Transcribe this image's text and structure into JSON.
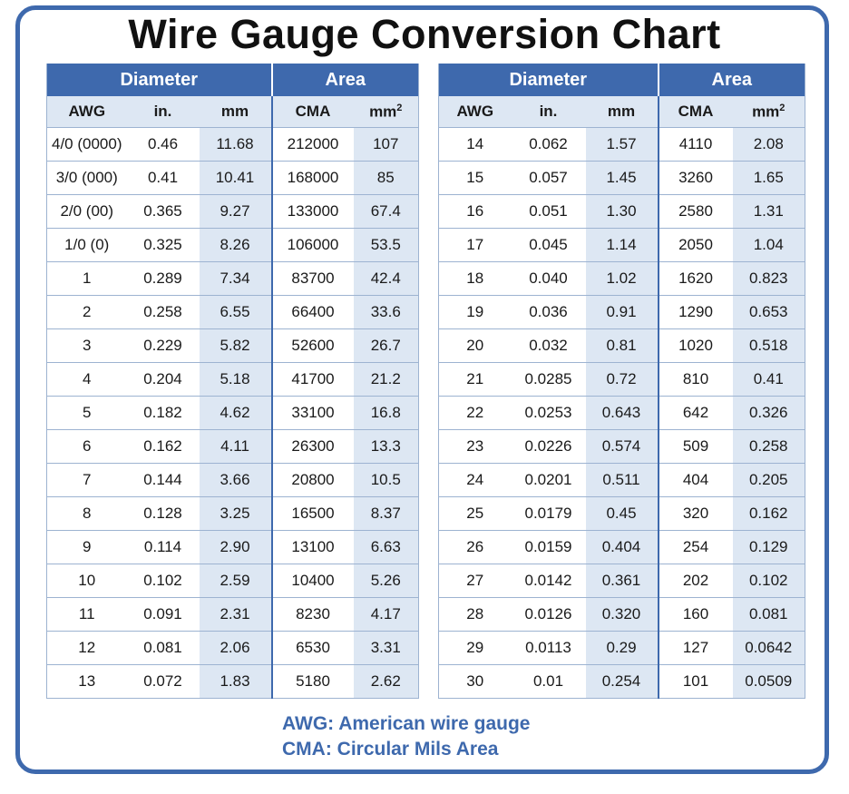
{
  "title": "Wire Gauge Conversion Chart",
  "colors": {
    "header": "#3e69ad",
    "shaded_column": "#dde7f3",
    "legend_text": "#3e69ad"
  },
  "groups": {
    "diameter": "Diameter",
    "area": "Area"
  },
  "columns": {
    "awg": "AWG",
    "in": "in.",
    "mm": "mm",
    "cma": "CMA",
    "mm2": "mm",
    "mm2_sup": "2"
  },
  "left_rows": [
    [
      "4/0 (0000)",
      "0.46",
      "11.68",
      "212000",
      "107"
    ],
    [
      "3/0 (000)",
      "0.41",
      "10.41",
      "168000",
      "85"
    ],
    [
      "2/0 (00)",
      "0.365",
      "9.27",
      "133000",
      "67.4"
    ],
    [
      "1/0 (0)",
      "0.325",
      "8.26",
      "106000",
      "53.5"
    ],
    [
      "1",
      "0.289",
      "7.34",
      "83700",
      "42.4"
    ],
    [
      "2",
      "0.258",
      "6.55",
      "66400",
      "33.6"
    ],
    [
      "3",
      "0.229",
      "5.82",
      "52600",
      "26.7"
    ],
    [
      "4",
      "0.204",
      "5.18",
      "41700",
      "21.2"
    ],
    [
      "5",
      "0.182",
      "4.62",
      "33100",
      "16.8"
    ],
    [
      "6",
      "0.162",
      "4.11",
      "26300",
      "13.3"
    ],
    [
      "7",
      "0.144",
      "3.66",
      "20800",
      "10.5"
    ],
    [
      "8",
      "0.128",
      "3.25",
      "16500",
      "8.37"
    ],
    [
      "9",
      "0.114",
      "2.90",
      "13100",
      "6.63"
    ],
    [
      "10",
      "0.102",
      "2.59",
      "10400",
      "5.26"
    ],
    [
      "11",
      "0.091",
      "2.31",
      "8230",
      "4.17"
    ],
    [
      "12",
      "0.081",
      "2.06",
      "6530",
      "3.31"
    ],
    [
      "13",
      "0.072",
      "1.83",
      "5180",
      "2.62"
    ]
  ],
  "right_rows": [
    [
      "14",
      "0.062",
      "1.57",
      "4110",
      "2.08"
    ],
    [
      "15",
      "0.057",
      "1.45",
      "3260",
      "1.65"
    ],
    [
      "16",
      "0.051",
      "1.30",
      "2580",
      "1.31"
    ],
    [
      "17",
      "0.045",
      "1.14",
      "2050",
      "1.04"
    ],
    [
      "18",
      "0.040",
      "1.02",
      "1620",
      "0.823"
    ],
    [
      "19",
      "0.036",
      "0.91",
      "1290",
      "0.653"
    ],
    [
      "20",
      "0.032",
      "0.81",
      "1020",
      "0.518"
    ],
    [
      "21",
      "0.0285",
      "0.72",
      "810",
      "0.41"
    ],
    [
      "22",
      "0.0253",
      "0.643",
      "642",
      "0.326"
    ],
    [
      "23",
      "0.0226",
      "0.574",
      "509",
      "0.258"
    ],
    [
      "24",
      "0.0201",
      "0.511",
      "404",
      "0.205"
    ],
    [
      "25",
      "0.0179",
      "0.45",
      "320",
      "0.162"
    ],
    [
      "26",
      "0.0159",
      "0.404",
      "254",
      "0.129"
    ],
    [
      "27",
      "0.0142",
      "0.361",
      "202",
      "0.102"
    ],
    [
      "28",
      "0.0126",
      "0.320",
      "160",
      "0.081"
    ],
    [
      "29",
      "0.0113",
      "0.29",
      "127",
      "0.0642"
    ],
    [
      "30",
      "0.01",
      "0.254",
      "101",
      "0.0509"
    ]
  ],
  "legend": {
    "awg": "AWG: American wire gauge",
    "cma": "CMA: Circular Mils Area"
  }
}
